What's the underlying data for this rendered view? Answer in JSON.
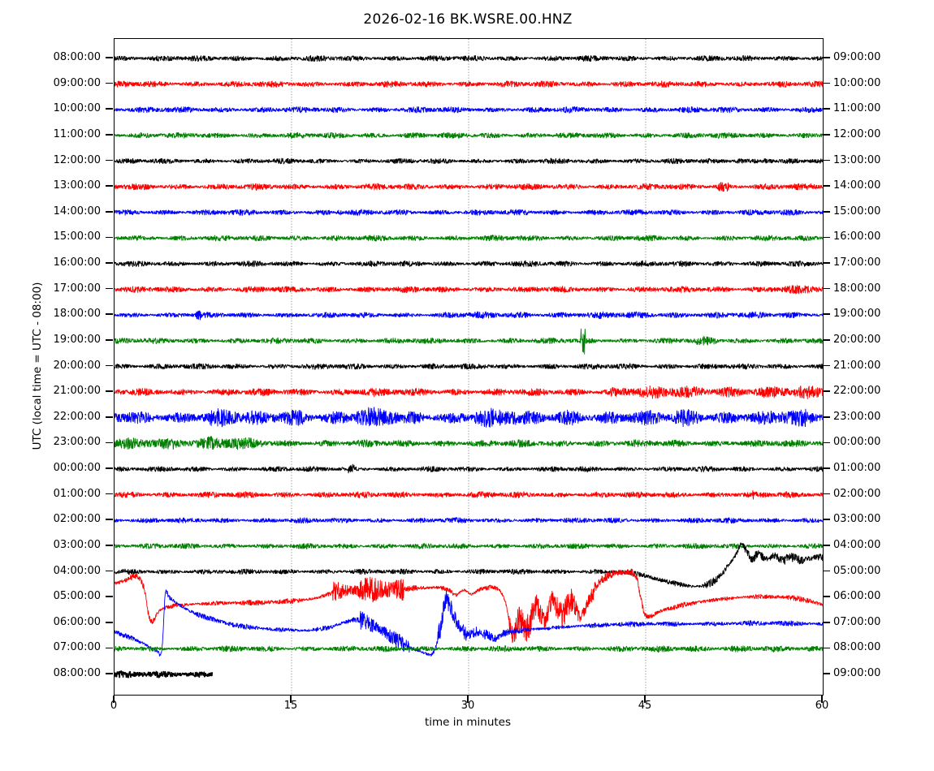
{
  "chart_data": {
    "type": "line",
    "variant": "seismogram-dayplot",
    "title": "2026-02-16 BK.WSRE.00.HNZ",
    "xlabel": "time in minutes",
    "ylabel": "UTC (local time = UTC - 08:00)",
    "x_range": [
      0,
      60
    ],
    "x_ticks": [
      0,
      15,
      30,
      45,
      60
    ],
    "grid_minutes": [
      15,
      30,
      45
    ],
    "grid_style": "dotted",
    "legend": "none",
    "colors": {
      "black": "#000000",
      "red": "#ff0000",
      "blue": "#0000ff",
      "green": "#008000"
    },
    "rows": [
      {
        "utc": "08:00:00",
        "local": "09:00:00",
        "color": "black",
        "noise": 2.8
      },
      {
        "utc": "09:00:00",
        "local": "10:00:00",
        "color": "red",
        "noise": 3.0
      },
      {
        "utc": "10:00:00",
        "local": "11:00:00",
        "color": "blue",
        "noise": 2.9
      },
      {
        "utc": "11:00:00",
        "local": "12:00:00",
        "color": "green",
        "noise": 2.8
      },
      {
        "utc": "12:00:00",
        "local": "13:00:00",
        "color": "black",
        "noise": 2.6,
        "bursts": [
          [
            52.5,
            53.3,
            5
          ],
          [
            55.0,
            55.9,
            4.5
          ]
        ]
      },
      {
        "utc": "13:00:00",
        "local": "14:00:00",
        "color": "red",
        "noise": 3.0,
        "bursts": [
          [
            51.1,
            52.1,
            5.5
          ]
        ]
      },
      {
        "utc": "14:00:00",
        "local": "15:00:00",
        "color": "blue",
        "noise": 2.8,
        "bursts": [
          [
            18.9,
            19.4,
            4.5
          ]
        ]
      },
      {
        "utc": "15:00:00",
        "local": "16:00:00",
        "color": "green",
        "noise": 2.8
      },
      {
        "utc": "16:00:00",
        "local": "17:00:00",
        "color": "black",
        "noise": 2.8
      },
      {
        "utc": "17:00:00",
        "local": "18:00:00",
        "color": "red",
        "noise": 3.0,
        "bursts": [
          [
            55.5,
            60,
            4.2
          ]
        ]
      },
      {
        "utc": "18:00:00",
        "local": "19:00:00",
        "color": "blue",
        "noise": 2.6,
        "bursts": [
          [
            6.9,
            7.3,
            5
          ],
          [
            28,
            60,
            3.2
          ]
        ]
      },
      {
        "utc": "19:00:00",
        "local": "20:00:00",
        "color": "green",
        "noise": 2.8,
        "bursts": [
          [
            39.5,
            39.9,
            14
          ],
          [
            49.3,
            51,
            4.2
          ]
        ]
      },
      {
        "utc": "20:00:00",
        "local": "21:00:00",
        "color": "black",
        "noise": 2.8
      },
      {
        "utc": "21:00:00",
        "local": "22:00:00",
        "color": "red",
        "noise": 3.5,
        "bursts": [
          [
            20,
            22,
            4.5
          ],
          [
            42,
            60,
            6
          ]
        ]
      },
      {
        "utc": "22:00:00",
        "local": "23:00:00",
        "color": "blue",
        "noise": 6.5,
        "bursts": [
          [
            8,
            10.5,
            8.5
          ],
          [
            13.5,
            16,
            9
          ],
          [
            20.5,
            24,
            9.5
          ],
          [
            30.5,
            34,
            9.5
          ],
          [
            37.5,
            39.5,
            9
          ],
          [
            47.5,
            49.8,
            9.5
          ],
          [
            56.3,
            58.6,
            8.5
          ]
        ]
      },
      {
        "utc": "23:00:00",
        "local": "00:00:00",
        "color": "green",
        "noise": 3.4,
        "bursts": [
          [
            0,
            2.5,
            5.5
          ],
          [
            2.5,
            5,
            7.5
          ],
          [
            5,
            7.6,
            6
          ],
          [
            7.6,
            10.5,
            7
          ],
          [
            10.5,
            12.5,
            5
          ]
        ]
      },
      {
        "utc": "00:00:00",
        "local": "01:00:00",
        "color": "black",
        "noise": 2.6,
        "bursts": [
          [
            19.8,
            20.3,
            5.5
          ]
        ]
      },
      {
        "utc": "01:00:00",
        "local": "02:00:00",
        "color": "red",
        "noise": 3.0,
        "bursts": [
          [
            53.7,
            54.3,
            4.5
          ]
        ]
      },
      {
        "utc": "02:00:00",
        "local": "03:00:00",
        "color": "blue",
        "noise": 2.6
      },
      {
        "utc": "03:00:00",
        "local": "04:00:00",
        "color": "green",
        "noise": 2.6
      },
      {
        "utc": "04:00:00",
        "local": "05:00:00",
        "color": "black",
        "noise": 2.6,
        "bursts": [
          [
            50,
            60,
            4.5
          ]
        ],
        "drift": [
          [
            0,
            0
          ],
          [
            42,
            0
          ],
          [
            44,
            -2
          ],
          [
            46,
            -9
          ],
          [
            48,
            -16
          ],
          [
            49.5,
            -18
          ],
          [
            50.5,
            -14
          ],
          [
            51.3,
            -5
          ],
          [
            52,
            8
          ],
          [
            52.6,
            20
          ],
          [
            53.1,
            33
          ],
          [
            53.5,
            26
          ],
          [
            54,
            17
          ],
          [
            54.6,
            22
          ],
          [
            55.2,
            15
          ],
          [
            55.9,
            20
          ],
          [
            56.6,
            14
          ],
          [
            57.4,
            18
          ],
          [
            58.2,
            14
          ],
          [
            59,
            17
          ],
          [
            60,
            18
          ]
        ]
      },
      {
        "utc": "05:00:00",
        "local": "06:00:00",
        "color": "red",
        "noise": 2.6,
        "bursts": [
          [
            2.4,
            3.5,
            4
          ],
          [
            18.5,
            24.5,
            12
          ],
          [
            33.4,
            40.8,
            13
          ],
          [
            41,
            44.4,
            5.5
          ]
        ],
        "drift": [
          [
            0,
            17
          ],
          [
            0.9,
            21
          ],
          [
            1.7,
            26
          ],
          [
            2.2,
            22
          ],
          [
            2.6,
            5
          ],
          [
            2.9,
            -22
          ],
          [
            3.2,
            -30
          ],
          [
            3.7,
            -18
          ],
          [
            4.5,
            -12
          ],
          [
            6,
            -9
          ],
          [
            9,
            -7
          ],
          [
            13,
            -6
          ],
          [
            16,
            -3
          ],
          [
            17.5,
            1
          ],
          [
            19,
            8
          ],
          [
            21,
            10
          ],
          [
            23,
            9
          ],
          [
            25,
            11
          ],
          [
            27,
            12
          ],
          [
            28.2,
            10
          ],
          [
            28.9,
            3
          ],
          [
            29.6,
            9
          ],
          [
            30.2,
            4
          ],
          [
            31,
            10
          ],
          [
            32.4,
            11
          ],
          [
            33.1,
            -5
          ],
          [
            33.7,
            -46
          ],
          [
            34.3,
            -25
          ],
          [
            35,
            -36
          ],
          [
            35.7,
            -10
          ],
          [
            36.4,
            -28
          ],
          [
            37.1,
            -4
          ],
          [
            37.9,
            -22
          ],
          [
            38.7,
            -3
          ],
          [
            39.4,
            -24
          ],
          [
            40.2,
            -4
          ],
          [
            41,
            16
          ],
          [
            41.9,
            27
          ],
          [
            43,
            31
          ],
          [
            44.1,
            27
          ],
          [
            44.5,
            5
          ],
          [
            44.9,
            -20
          ],
          [
            45.4,
            -23
          ],
          [
            46.2,
            -17
          ],
          [
            47.5,
            -12
          ],
          [
            49,
            -7
          ],
          [
            51,
            -3
          ],
          [
            53,
            0
          ],
          [
            55,
            1
          ],
          [
            57,
            0
          ],
          [
            58.5,
            -3
          ],
          [
            60,
            -9
          ]
        ]
      },
      {
        "utc": "06:00:00",
        "local": "07:00:00",
        "color": "blue",
        "noise": 2.6,
        "bursts": [
          [
            20.8,
            25,
            8
          ],
          [
            27.4,
            29.8,
            13
          ],
          [
            29.8,
            33.5,
            5
          ]
        ],
        "drift": [
          [
            0,
            -11
          ],
          [
            1.2,
            -17
          ],
          [
            2.4,
            -25
          ],
          [
            3.2,
            -31
          ],
          [
            3.7,
            -36
          ],
          [
            3.95,
            -38
          ],
          [
            4.1,
            -15
          ],
          [
            4.3,
            36
          ],
          [
            4.6,
            32
          ],
          [
            5.2,
            25
          ],
          [
            6,
            18
          ],
          [
            7,
            11
          ],
          [
            8.5,
            4
          ],
          [
            10,
            -2
          ],
          [
            12,
            -6
          ],
          [
            14,
            -8
          ],
          [
            16,
            -9
          ],
          [
            18,
            -6
          ],
          [
            19.5,
            1
          ],
          [
            20.5,
            4
          ],
          [
            21.5,
            0
          ],
          [
            22.5,
            -8
          ],
          [
            23.5,
            -17
          ],
          [
            24.5,
            -27
          ],
          [
            25.5,
            -33
          ],
          [
            26.3,
            -37
          ],
          [
            26.8,
            -39
          ],
          [
            27.2,
            -30
          ],
          [
            27.6,
            -8
          ],
          [
            28,
            28
          ],
          [
            28.4,
            22
          ],
          [
            28.9,
            4
          ],
          [
            29.4,
            -9
          ],
          [
            30,
            -14
          ],
          [
            30.7,
            -11
          ],
          [
            31.5,
            -14
          ],
          [
            32.3,
            -19
          ],
          [
            32.9,
            -13
          ],
          [
            33.6,
            -11
          ],
          [
            34.5,
            -9
          ],
          [
            36,
            -7
          ],
          [
            38,
            -5
          ],
          [
            40,
            -3
          ],
          [
            42,
            -2
          ],
          [
            45,
            -1
          ],
          [
            50,
            -1
          ],
          [
            55,
            0
          ],
          [
            60,
            -1
          ]
        ]
      },
      {
        "utc": "07:00:00",
        "local": "08:00:00",
        "color": "green",
        "noise": 2.8,
        "bursts": [
          [
            46,
            54,
            3.4
          ]
        ]
      },
      {
        "utc": "08:00:00",
        "local": "09:00:00",
        "color": "black",
        "noise": 3.2,
        "extent": [
          0,
          8.3
        ],
        "thick": true
      }
    ]
  }
}
